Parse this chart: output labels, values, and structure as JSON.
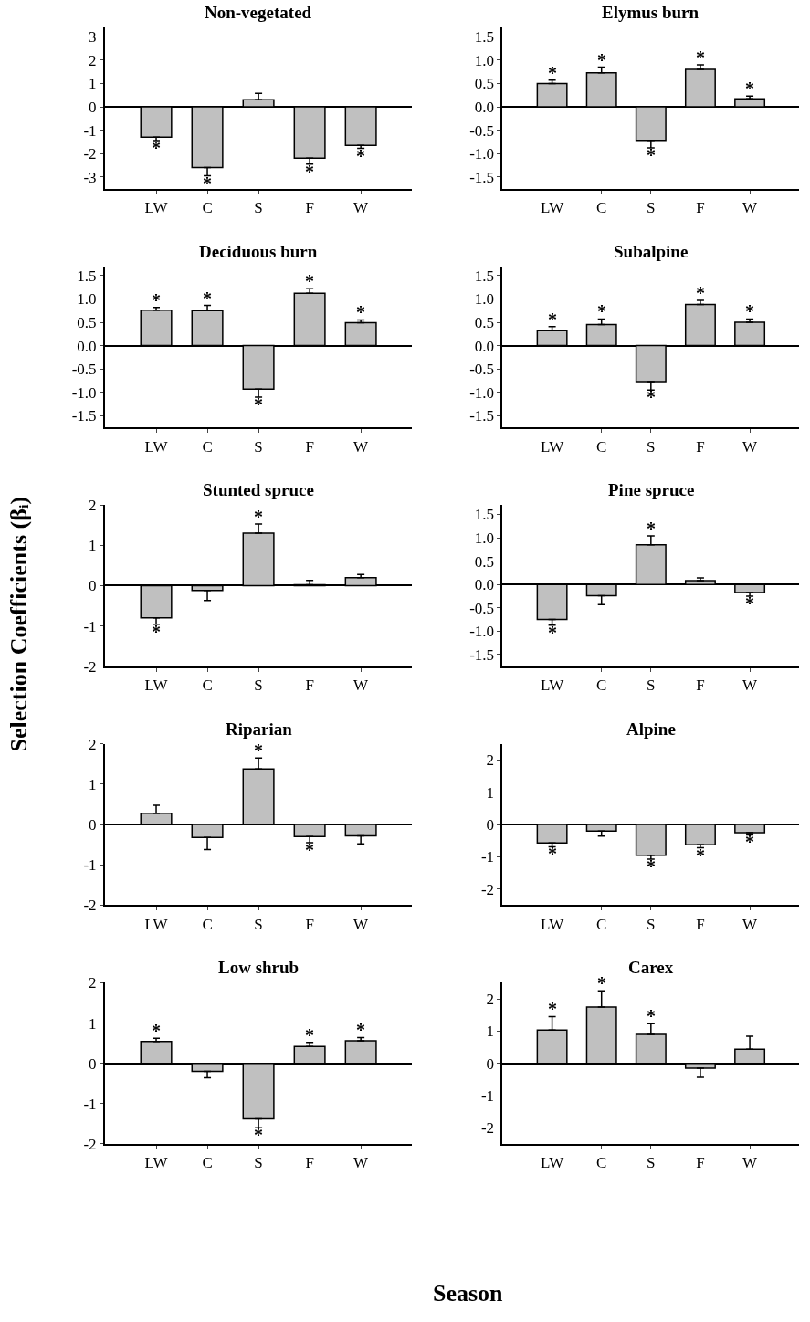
{
  "chart_data": [
    {
      "type": "bar",
      "title": "Non-vegetated",
      "categories": [
        "LW",
        "C",
        "S",
        "F",
        "W"
      ],
      "series": [
        {
          "color": "#c0c0c0",
          "values": [
            -1.3,
            -2.6,
            0.3,
            -2.2,
            -1.65
          ],
          "value_labels": [
            "*",
            "*",
            null,
            "*",
            "*"
          ],
          "errors": [
            [
              -1.45,
              -1.3
            ],
            [
              -2.95,
              -2.6
            ],
            [
              0.3,
              0.58
            ],
            [
              -2.45,
              -2.2
            ],
            [
              -1.78,
              -1.65
            ]
          ]
        }
      ],
      "ylim": [
        -3.5,
        3.4
      ],
      "yticks": [
        -3,
        -2,
        -1,
        0,
        1,
        2,
        3
      ]
    },
    {
      "type": "bar",
      "title": "Elymus burn",
      "categories": [
        "LW",
        "C",
        "S",
        "F",
        "W"
      ],
      "series": [
        {
          "color": "#c0c0c0",
          "values": [
            0.5,
            0.73,
            -0.72,
            0.8,
            0.17
          ],
          "value_labels": [
            "*",
            "*",
            "*",
            "*",
            "*"
          ],
          "errors": [
            [
              0.5,
              0.57
            ],
            [
              0.73,
              0.85
            ],
            [
              -0.88,
              -0.72
            ],
            [
              0.8,
              0.9
            ],
            [
              0.17,
              0.23
            ]
          ]
        }
      ],
      "ylim": [
        -1.75,
        1.7
      ],
      "yticks": [
        {
          "value": -1.5,
          "label": "-1.5"
        },
        {
          "value": -1,
          "label": "-1.0"
        },
        {
          "value": -0.5,
          "label": "-0.5"
        },
        {
          "value": 0,
          "label": "0.0"
        },
        {
          "value": 0.5,
          "label": "0.5"
        },
        {
          "value": 1,
          "label": "1.0"
        },
        {
          "value": 1.5,
          "label": "1.5"
        }
      ]
    },
    {
      "type": "bar",
      "title": "Deciduous burn",
      "categories": [
        "LW",
        "C",
        "S",
        "F",
        "W"
      ],
      "series": [
        {
          "color": "#c0c0c0",
          "values": [
            0.76,
            0.75,
            -0.93,
            1.12,
            0.49
          ],
          "value_labels": [
            "*",
            "*",
            "*",
            "*",
            "*"
          ],
          "errors": [
            [
              0.76,
              0.82
            ],
            [
              0.75,
              0.86
            ],
            [
              -1.1,
              -0.93
            ],
            [
              1.12,
              1.22
            ],
            [
              0.49,
              0.55
            ]
          ]
        }
      ],
      "ylim": [
        -1.75,
        1.7
      ],
      "yticks": [
        {
          "value": -1.5,
          "label": "-1.5"
        },
        {
          "value": -1,
          "label": "-1.0"
        },
        {
          "value": -0.5,
          "label": "-0.5"
        },
        {
          "value": 0,
          "label": "0.0"
        },
        {
          "value": 0.5,
          "label": "0.5"
        },
        {
          "value": 1,
          "label": "1.0"
        },
        {
          "value": 1.5,
          "label": "1.5"
        }
      ]
    },
    {
      "type": "bar",
      "title": "Subalpine",
      "categories": [
        "LW",
        "C",
        "S",
        "F",
        "W"
      ],
      "series": [
        {
          "color": "#c0c0c0",
          "values": [
            0.33,
            0.45,
            -0.77,
            0.88,
            0.5
          ],
          "value_labels": [
            "*",
            "*",
            "*",
            "*",
            "*"
          ],
          "errors": [
            [
              0.33,
              0.41
            ],
            [
              0.45,
              0.57
            ],
            [
              -0.95,
              -0.77
            ],
            [
              0.88,
              0.97
            ],
            [
              0.5,
              0.57
            ]
          ]
        }
      ],
      "ylim": [
        -1.75,
        1.7
      ],
      "yticks": [
        {
          "value": -1.5,
          "label": "-1.5"
        },
        {
          "value": -1,
          "label": "-1.0"
        },
        {
          "value": -0.5,
          "label": "-0.5"
        },
        {
          "value": 0,
          "label": "0.0"
        },
        {
          "value": 0.5,
          "label": "0.5"
        },
        {
          "value": 1,
          "label": "1.0"
        },
        {
          "value": 1.5,
          "label": "1.5"
        }
      ]
    },
    {
      "type": "bar",
      "title": "Stunted spruce",
      "ylabel": "Selection Coefficients (βᵢ)",
      "categories": [
        "LW",
        "C",
        "S",
        "F",
        "W"
      ],
      "series": [
        {
          "color": "#c0c0c0",
          "values": [
            -0.8,
            -0.12,
            1.3,
            0.02,
            0.2
          ],
          "value_labels": [
            "*",
            null,
            "*",
            null,
            null
          ],
          "errors": [
            [
              -0.96,
              -0.8
            ],
            [
              -0.37,
              -0.12
            ],
            [
              1.3,
              1.53
            ],
            [
              0.02,
              0.13
            ],
            [
              0.2,
              0.28
            ]
          ]
        }
      ],
      "ylim": [
        -2,
        2
      ],
      "yticks": [
        -2,
        -1,
        0,
        1,
        2
      ]
    },
    {
      "type": "bar",
      "title": "Pine spruce",
      "categories": [
        "LW",
        "C",
        "S",
        "F",
        "W"
      ],
      "series": [
        {
          "color": "#c0c0c0",
          "values": [
            -0.75,
            -0.24,
            0.85,
            0.08,
            -0.17
          ],
          "value_labels": [
            "*",
            null,
            "*",
            null,
            "*"
          ],
          "errors": [
            [
              -0.87,
              -0.75
            ],
            [
              -0.43,
              -0.24
            ],
            [
              0.85,
              1.04
            ],
            [
              0.08,
              0.14
            ],
            [
              -0.25,
              -0.17
            ]
          ]
        }
      ],
      "ylim": [
        -1.75,
        1.7
      ],
      "yticks": [
        {
          "value": -1.5,
          "label": "-1.5"
        },
        {
          "value": -1,
          "label": "-1.0"
        },
        {
          "value": -0.5,
          "label": "-0.5"
        },
        {
          "value": 0,
          "label": "0.0"
        },
        {
          "value": 0.5,
          "label": "0.5"
        },
        {
          "value": 1,
          "label": "1.0"
        },
        {
          "value": 1.5,
          "label": "1.5"
        }
      ]
    },
    {
      "type": "bar",
      "title": "Riparian",
      "categories": [
        "LW",
        "C",
        "S",
        "F",
        "W"
      ],
      "series": [
        {
          "color": "#c0c0c0",
          "values": [
            0.28,
            -0.32,
            1.38,
            -0.3,
            -0.28
          ],
          "value_labels": [
            null,
            null,
            "*",
            "*",
            null
          ],
          "errors": [
            [
              0.28,
              0.48
            ],
            [
              -0.62,
              -0.32
            ],
            [
              1.38,
              1.65
            ],
            [
              -0.45,
              -0.3
            ],
            [
              -0.48,
              -0.28
            ]
          ]
        }
      ],
      "ylim": [
        -2,
        2
      ],
      "yticks": [
        -2,
        -1,
        0,
        1,
        2
      ]
    },
    {
      "type": "bar",
      "title": "Alpine",
      "categories": [
        "LW",
        "C",
        "S",
        "F",
        "W"
      ],
      "series": [
        {
          "color": "#c0c0c0",
          "values": [
            -0.57,
            -0.2,
            -0.95,
            -0.63,
            -0.25
          ],
          "value_labels": [
            "*",
            null,
            "*",
            "*",
            "*"
          ],
          "errors": [
            [
              -0.69,
              -0.57
            ],
            [
              -0.36,
              -0.2
            ],
            [
              -1.07,
              -0.95
            ],
            [
              -0.72,
              -0.63
            ],
            [
              -0.32,
              -0.25
            ]
          ]
        }
      ],
      "ylim": [
        -2.5,
        2.5
      ],
      "yticks": [
        -2,
        -1,
        0,
        1,
        2
      ]
    },
    {
      "type": "bar",
      "title": "Low shrub",
      "xlabel": "Season",
      "categories": [
        "LW",
        "C",
        "S",
        "F",
        "W"
      ],
      "series": [
        {
          "color": "#c0c0c0",
          "values": [
            0.54,
            -0.2,
            -1.38,
            0.42,
            0.56
          ],
          "value_labels": [
            "*",
            null,
            "*",
            "*",
            "*"
          ],
          "errors": [
            [
              0.54,
              0.62
            ],
            [
              -0.36,
              -0.2
            ],
            [
              -1.6,
              -1.38
            ],
            [
              0.42,
              0.52
            ],
            [
              0.56,
              0.64
            ]
          ]
        }
      ],
      "ylim": [
        -2,
        2
      ],
      "yticks": [
        -2,
        -1,
        0,
        1,
        2
      ]
    },
    {
      "type": "bar",
      "title": "Carex",
      "categories": [
        "LW",
        "C",
        "S",
        "F",
        "W"
      ],
      "series": [
        {
          "color": "#c0c0c0",
          "values": [
            1.03,
            1.75,
            0.9,
            -0.15,
            0.44
          ],
          "value_labels": [
            "*",
            "*",
            "*",
            null,
            null
          ],
          "errors": [
            [
              1.03,
              1.45
            ],
            [
              1.75,
              2.25
            ],
            [
              0.9,
              1.23
            ],
            [
              -0.43,
              -0.15
            ],
            [
              0.44,
              0.84
            ]
          ]
        }
      ],
      "ylim": [
        -2.5,
        2.5
      ],
      "yticks": [
        -2,
        -1,
        0,
        1,
        2
      ]
    }
  ]
}
